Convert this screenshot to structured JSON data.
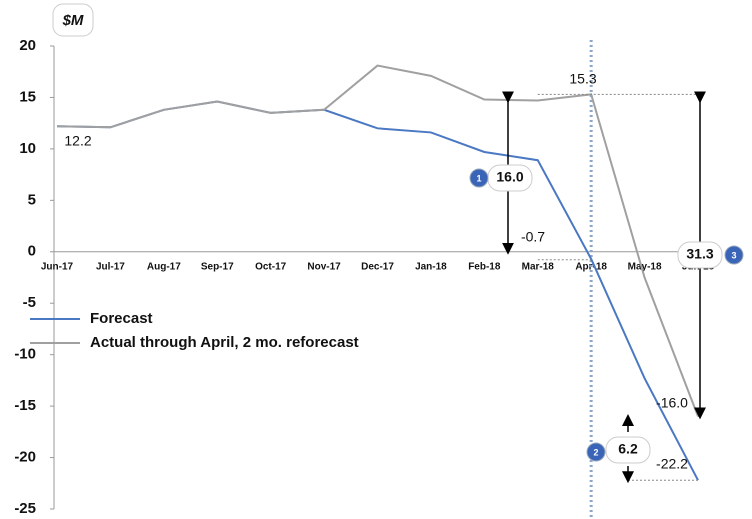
{
  "chart_data": {
    "type": "line",
    "unit_label": "$M",
    "categories": [
      "Jun-17",
      "Jul-17",
      "Aug-17",
      "Sep-17",
      "Oct-17",
      "Nov-17",
      "Dec-17",
      "Jan-18",
      "Feb-18",
      "Mar-18",
      "Apr-18",
      "May-18",
      "Jun-18"
    ],
    "series": [
      {
        "name": "Forecast",
        "color": "#4a78c2",
        "values": [
          12.2,
          12.1,
          13.8,
          14.6,
          13.5,
          13.8,
          12.0,
          11.6,
          9.7,
          8.9,
          -0.7,
          -12.3,
          -22.2
        ]
      },
      {
        "name": "Actual through April, 2 mo. reforecast",
        "color": "#a0a0a0",
        "values": [
          12.2,
          12.1,
          13.8,
          14.6,
          13.5,
          13.8,
          18.1,
          17.1,
          14.8,
          14.7,
          15.3,
          -2.5,
          -16.0
        ]
      }
    ],
    "ylim": [
      -25,
      20
    ],
    "yticks": [
      -25,
      -20,
      -15,
      -10,
      -5,
      0,
      5,
      10,
      15,
      20
    ],
    "annotations": [
      "12.2",
      "15.3",
      "16.0",
      "-0.7",
      "31.3",
      "-16.0",
      "6.2",
      "-22.2",
      "1",
      "2",
      "3"
    ]
  }
}
